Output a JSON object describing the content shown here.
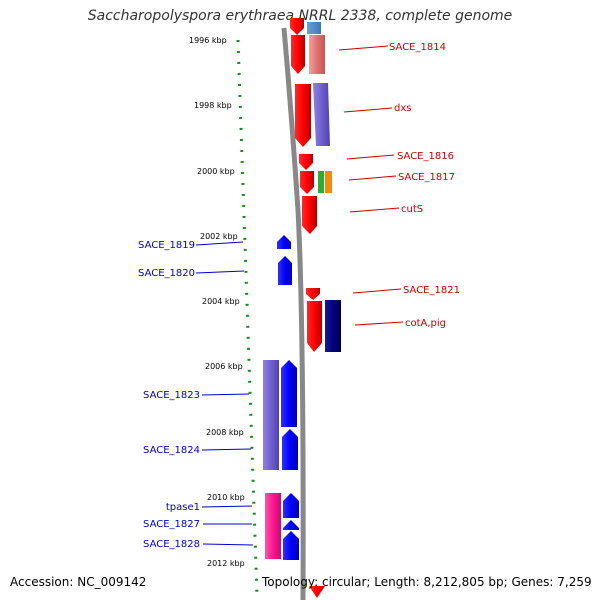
{
  "title": "Saccharopolyspora erythraea NRRL 2338, complete genome",
  "footer": {
    "accession": "Accession: NC_009142",
    "summary": "Topology: circular; Length: 8,212,805 bp; Genes: 7,259"
  },
  "ruler": {
    "ticks": [
      "1996 kbp",
      "1998 kbp",
      "2000 kbp",
      "2002 kbp",
      "2004 kbp",
      "2006 kbp",
      "2008 kbp",
      "2010 kbp",
      "2012 kbp"
    ],
    "tick_color": "#1a8a1a"
  },
  "colors": {
    "forward_label": "#cc0000",
    "reverse_label": "#0000cc",
    "backbone": "#888888"
  },
  "genes_right": [
    "SACE_1814",
    "dxs",
    "SACE_1816",
    "SACE_1817",
    "cutS",
    "SACE_1821",
    "cotA,pig"
  ],
  "genes_left": [
    "SACE_1819",
    "SACE_1820",
    "SACE_1823",
    "SACE_1824",
    "tpase1",
    "SACE_1827",
    "SACE_1828"
  ]
}
